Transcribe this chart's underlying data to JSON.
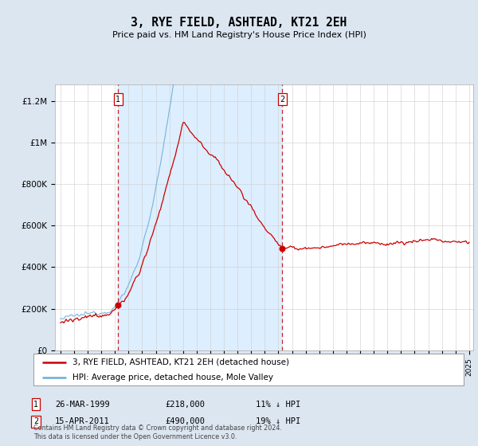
{
  "title": "3, RYE FIELD, ASHTEAD, KT21 2EH",
  "subtitle": "Price paid vs. HM Land Registry's House Price Index (HPI)",
  "sale1": {
    "date_label": "26-MAR-1999",
    "year": 1999.23,
    "price": 218000,
    "pct": "11%",
    "direction": "↓"
  },
  "sale2": {
    "date_label": "15-APR-2011",
    "year": 2011.29,
    "price": 490000,
    "pct": "19%",
    "direction": "↓"
  },
  "hpi_color": "#6baed6",
  "price_color": "#cc0000",
  "sale_dot_color": "#cc0000",
  "vline_color": "#cc0000",
  "shade_color": "#ddeeff",
  "background_color": "#dce6f1",
  "plot_bg_color": "#ffffff",
  "legend_label_price": "3, RYE FIELD, ASHTEAD, KT21 2EH (detached house)",
  "legend_label_hpi": "HPI: Average price, detached house, Mole Valley",
  "footnote": "Contains HM Land Registry data © Crown copyright and database right 2024.\nThis data is licensed under the Open Government Licence v3.0.",
  "y_ticks": [
    0,
    200000,
    400000,
    600000,
    800000,
    1000000,
    1200000
  ],
  "y_tick_labels": [
    "£0",
    "£200K",
    "£400K",
    "£600K",
    "£800K",
    "£1M",
    "£1.2M"
  ],
  "y_max": 1280000
}
